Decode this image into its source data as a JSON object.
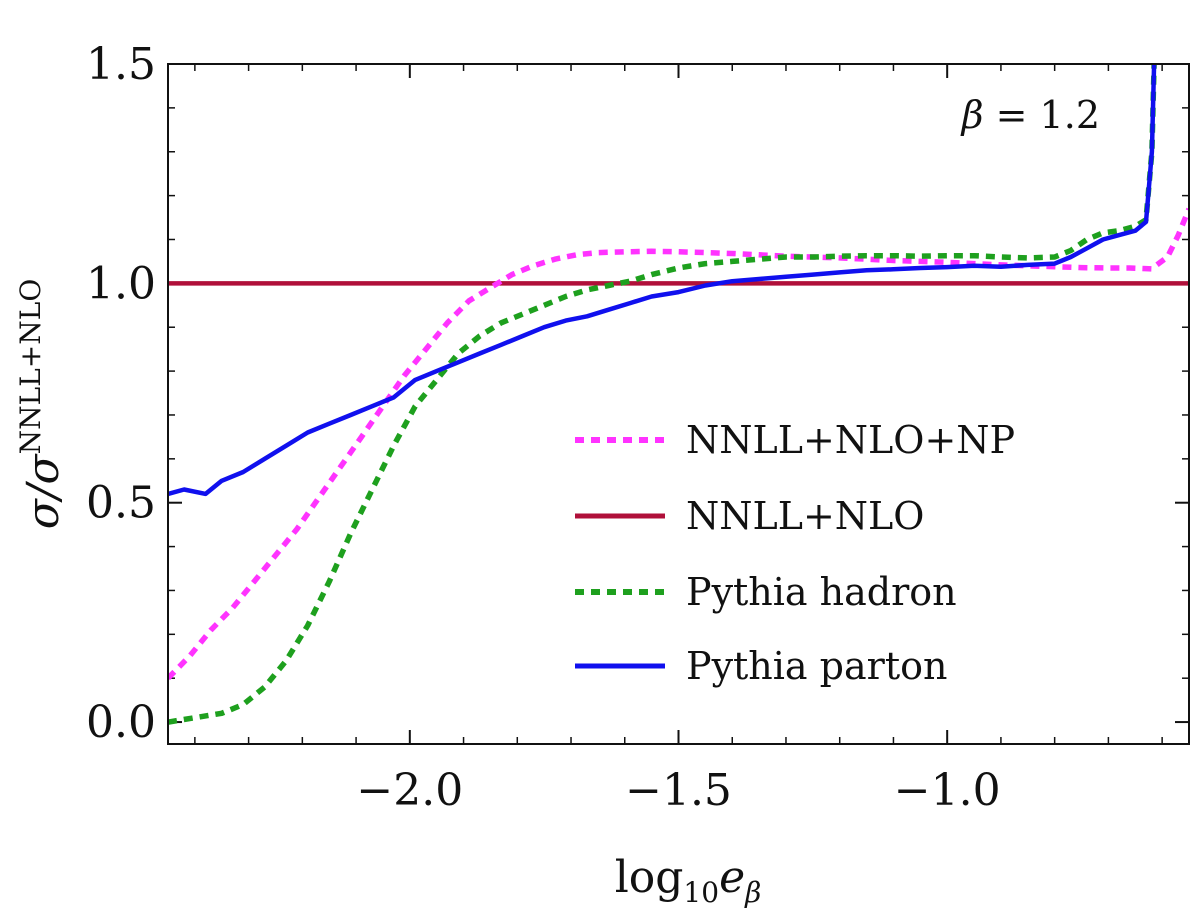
{
  "chart_data": {
    "type": "line",
    "title": "",
    "xlabel": {
      "base": "log",
      "sub": "10",
      "var": "e",
      "varsub": "β"
    },
    "ylabel": {
      "base": "σ/σ",
      "sup": "NNLL+NLO"
    },
    "xlim": [
      -2.45,
      -0.55
    ],
    "ylim": [
      -0.05,
      1.5
    ],
    "xticks": [
      -2.0,
      -1.5,
      -1.0
    ],
    "xtick_labels": [
      "−2.0",
      "−1.5",
      "−1.0"
    ],
    "yticks": [
      0.0,
      0.5,
      1.0,
      1.5
    ],
    "ytick_labels": [
      "0.0",
      "0.5",
      "1.0",
      "1.5"
    ],
    "annotation": {
      "var": "β",
      "rest": " = 1.2"
    },
    "legend_position": "lower-right",
    "series": [
      {
        "name": "NNLL+NLO+NP",
        "color": "#ff33ff",
        "style": "dotted",
        "x": [
          -2.45,
          -2.41,
          -2.37,
          -2.33,
          -2.29,
          -2.25,
          -2.21,
          -2.17,
          -2.13,
          -2.09,
          -2.05,
          -2.01,
          -1.97,
          -1.93,
          -1.89,
          -1.85,
          -1.81,
          -1.77,
          -1.73,
          -1.69,
          -1.65,
          -1.6,
          -1.55,
          -1.5,
          -1.45,
          -1.4,
          -1.35,
          -1.3,
          -1.25,
          -1.2,
          -1.15,
          -1.1,
          -1.05,
          -1.0,
          -0.95,
          -0.9,
          -0.85,
          -0.8,
          -0.75,
          -0.7,
          -0.66,
          -0.62,
          -0.59,
          -0.57,
          -0.55
        ],
        "y": [
          0.1,
          0.15,
          0.21,
          0.26,
          0.32,
          0.38,
          0.44,
          0.51,
          0.58,
          0.65,
          0.72,
          0.79,
          0.85,
          0.91,
          0.96,
          0.99,
          1.02,
          1.04,
          1.055,
          1.065,
          1.07,
          1.072,
          1.073,
          1.072,
          1.07,
          1.068,
          1.065,
          1.062,
          1.06,
          1.058,
          1.055,
          1.052,
          1.05,
          1.048,
          1.045,
          1.042,
          1.04,
          1.038,
          1.036,
          1.035,
          1.035,
          1.033,
          1.06,
          1.11,
          1.17
        ]
      },
      {
        "name": "NNLL+NLO",
        "color": "#b0103a",
        "style": "solid",
        "x": [
          -2.45,
          -0.55
        ],
        "y": [
          1.0,
          1.0
        ]
      },
      {
        "name": "Pythia hadron",
        "color": "#1ea01e",
        "style": "dotted",
        "x": [
          -2.45,
          -2.4,
          -2.35,
          -2.31,
          -2.27,
          -2.23,
          -2.19,
          -2.15,
          -2.11,
          -2.07,
          -2.03,
          -1.99,
          -1.95,
          -1.91,
          -1.87,
          -1.83,
          -1.79,
          -1.75,
          -1.71,
          -1.67,
          -1.63,
          -1.59,
          -1.55,
          -1.5,
          -1.45,
          -1.4,
          -1.35,
          -1.3,
          -1.25,
          -1.2,
          -1.15,
          -1.1,
          -1.05,
          -1.0,
          -0.95,
          -0.9,
          -0.85,
          -0.8,
          -0.77,
          -0.74,
          -0.71,
          -0.68,
          -0.65,
          -0.63,
          -0.619,
          -0.615
        ],
        "y": [
          0.0,
          0.01,
          0.02,
          0.04,
          0.08,
          0.14,
          0.22,
          0.32,
          0.43,
          0.53,
          0.63,
          0.72,
          0.78,
          0.84,
          0.88,
          0.91,
          0.93,
          0.95,
          0.97,
          0.985,
          0.995,
          1.005,
          1.02,
          1.035,
          1.045,
          1.05,
          1.055,
          1.06,
          1.06,
          1.062,
          1.063,
          1.063,
          1.062,
          1.063,
          1.063,
          1.06,
          1.058,
          1.06,
          1.075,
          1.1,
          1.115,
          1.12,
          1.13,
          1.145,
          1.3,
          1.5
        ]
      },
      {
        "name": "Pythia parton",
        "color": "#1010ee",
        "style": "solid",
        "x": [
          -2.45,
          -2.42,
          -2.38,
          -2.35,
          -2.31,
          -2.27,
          -2.23,
          -2.19,
          -2.15,
          -2.11,
          -2.07,
          -2.03,
          -1.99,
          -1.95,
          -1.91,
          -1.87,
          -1.83,
          -1.79,
          -1.75,
          -1.71,
          -1.67,
          -1.63,
          -1.59,
          -1.55,
          -1.5,
          -1.45,
          -1.4,
          -1.35,
          -1.3,
          -1.25,
          -1.2,
          -1.15,
          -1.1,
          -1.05,
          -1.0,
          -0.95,
          -0.9,
          -0.85,
          -0.8,
          -0.77,
          -0.74,
          -0.71,
          -0.68,
          -0.65,
          -0.63,
          -0.619,
          -0.615
        ],
        "y": [
          0.52,
          0.53,
          0.52,
          0.55,
          0.57,
          0.6,
          0.63,
          0.66,
          0.68,
          0.7,
          0.72,
          0.74,
          0.78,
          0.8,
          0.82,
          0.84,
          0.86,
          0.88,
          0.9,
          0.915,
          0.925,
          0.94,
          0.955,
          0.97,
          0.98,
          0.995,
          1.005,
          1.01,
          1.015,
          1.02,
          1.025,
          1.03,
          1.032,
          1.035,
          1.037,
          1.04,
          1.038,
          1.042,
          1.045,
          1.06,
          1.08,
          1.1,
          1.11,
          1.12,
          1.14,
          1.3,
          1.5
        ]
      }
    ]
  }
}
